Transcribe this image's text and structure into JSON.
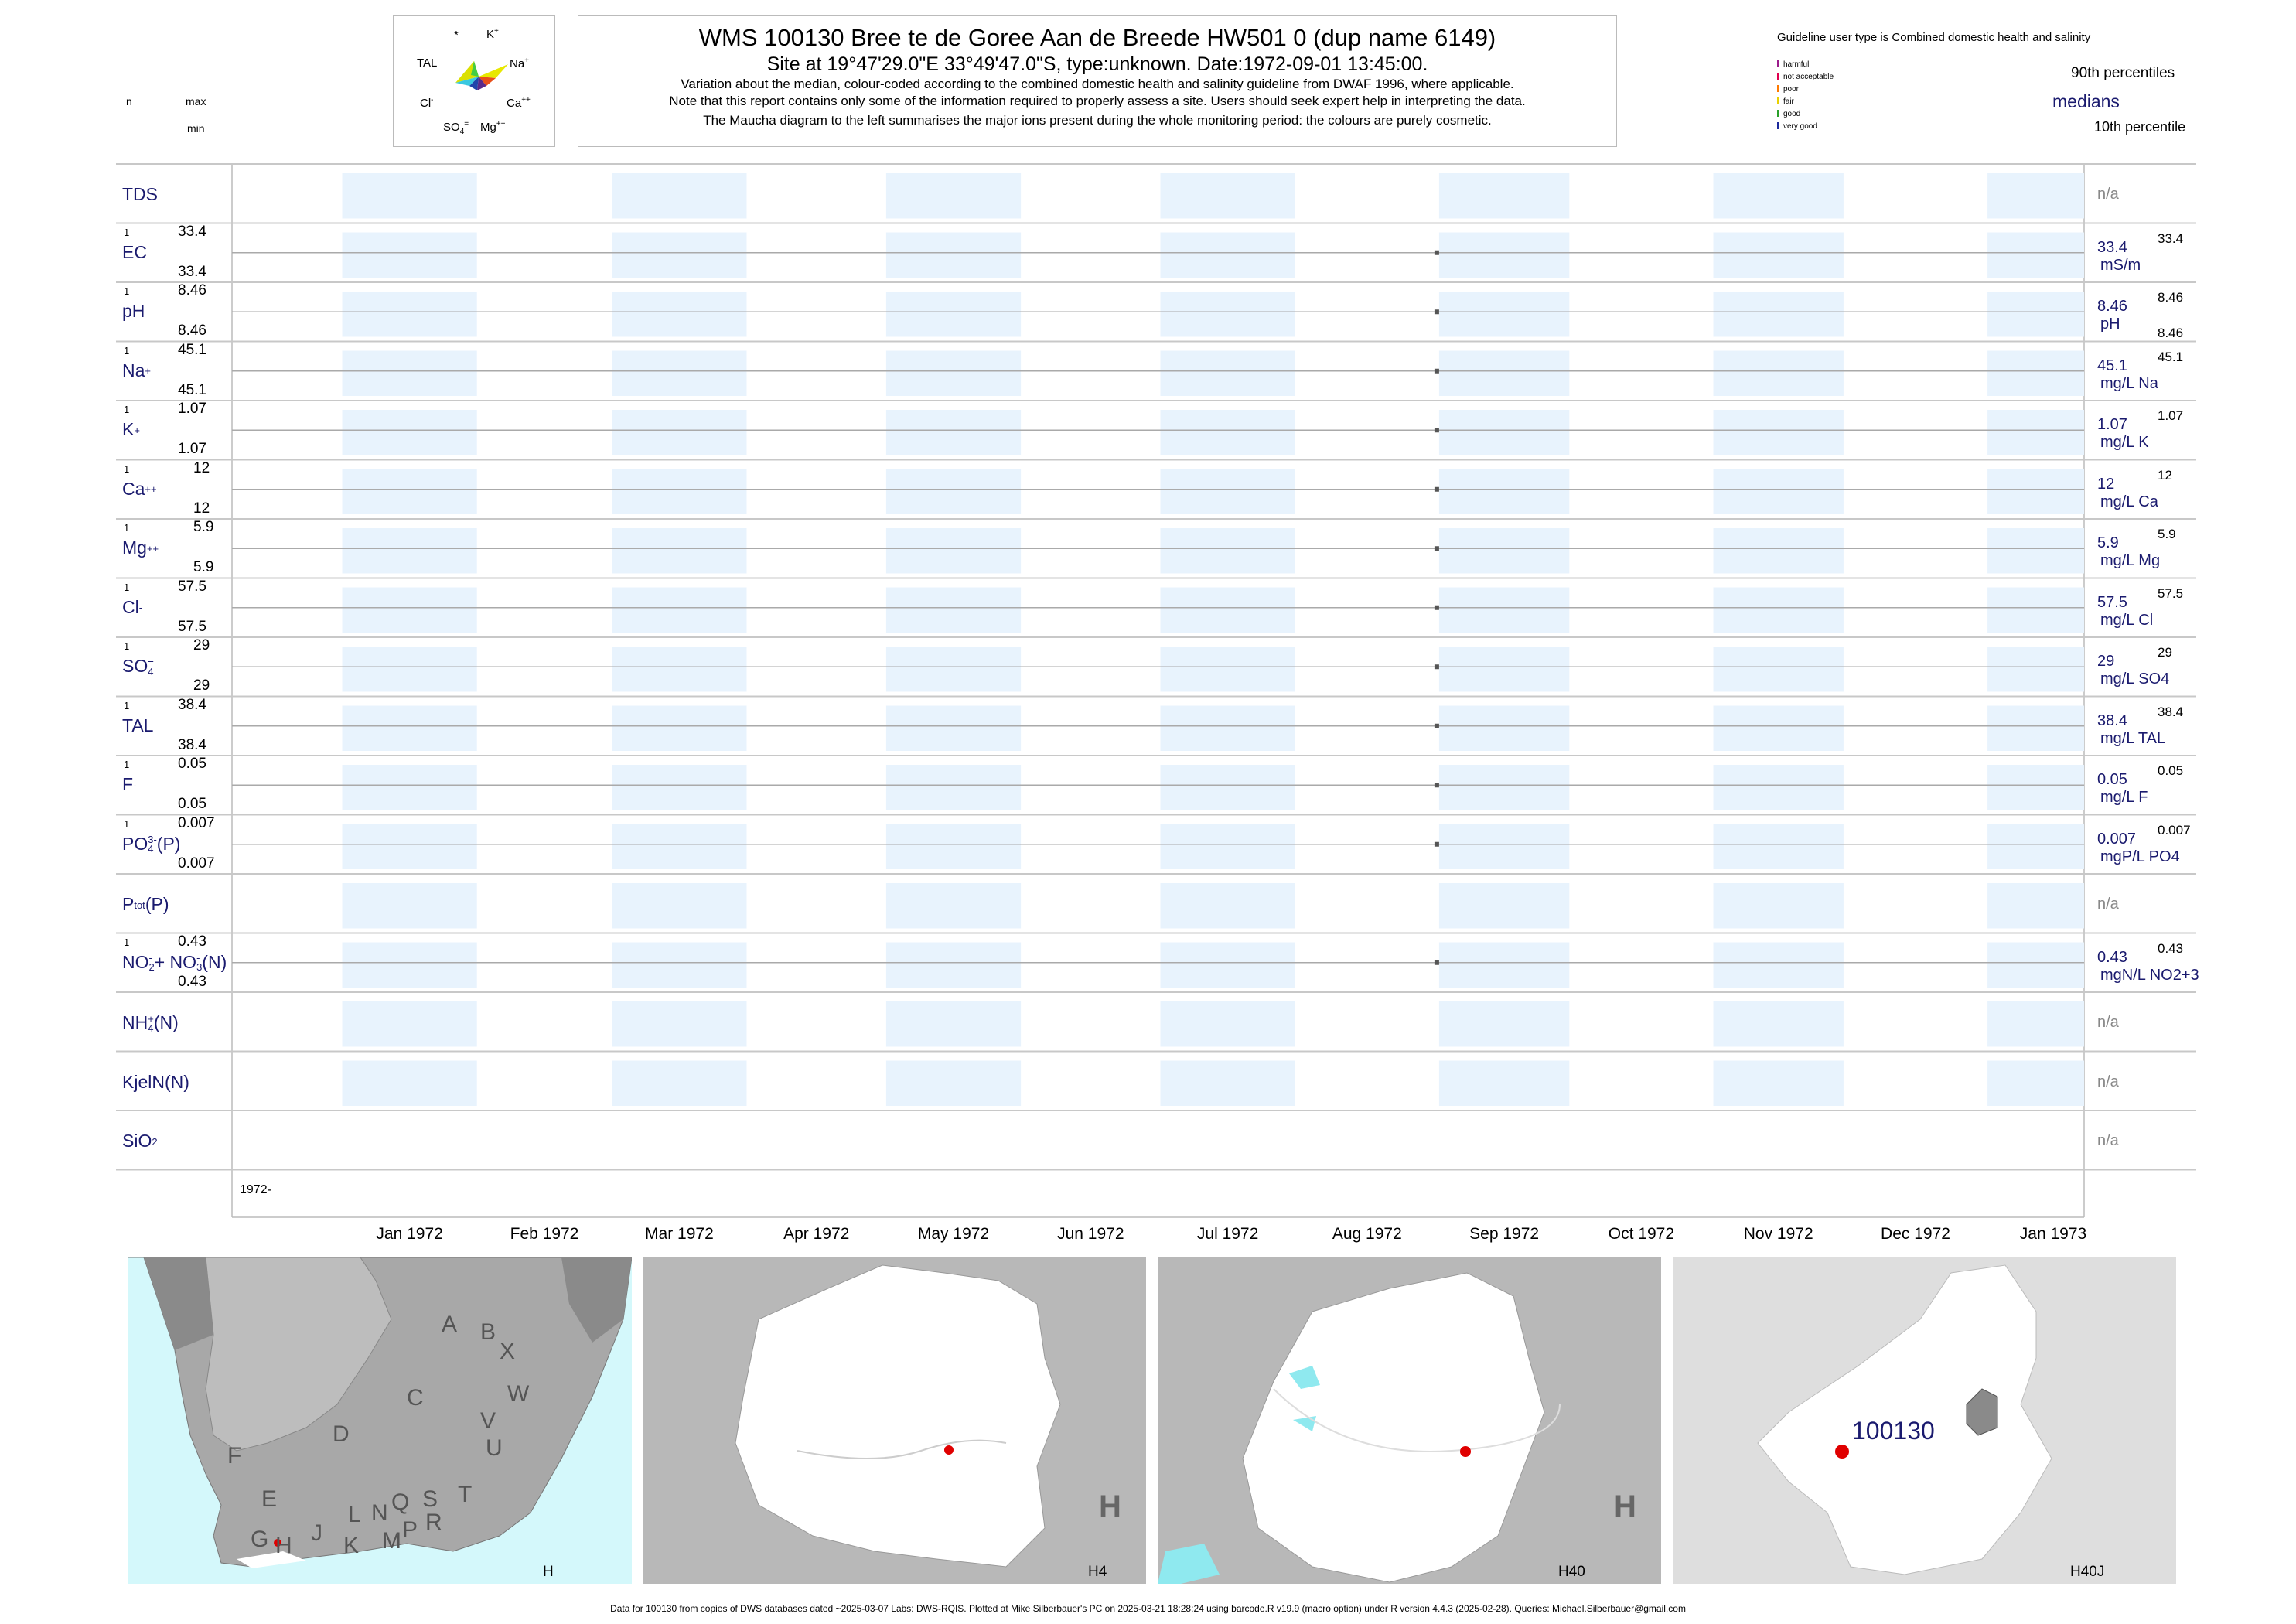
{
  "header": {
    "title": "WMS 100130  Bree te de Goree Aan de Breede HW501 0 (dup name 6149)",
    "subtitle": "Site at 19°47'29.0\"E 33°49'47.0\"S, type:unknown. Date:1972-09-01 13:45:00.",
    "note1": "Variation about the median,  colour-coded according to the combined domestic health and salinity guideline from DWAF 1996, where applicable.",
    "note2": "Note that this report contains only some of the information required to properly assess a site. Users should seek expert help in interpreting the data.",
    "note3": "The Maucha diagram to the left summarises the major ions present during the whole monitoring period: the colours are purely cosmetic."
  },
  "maucha": {
    "k": "K",
    "k_sup": "+",
    "tal": "TAL",
    "na": "Na",
    "na_sup": "+",
    "cl": "Cl",
    "cl_sup": "-",
    "ca": "Ca",
    "ca_sup": "++",
    "so4": "SO",
    "so4_sub": "4",
    "so4_sup": "=",
    "mg": "Mg",
    "mg_sup": "++",
    "star": "*"
  },
  "column_headers": {
    "n": "n",
    "max": "max",
    "min": "min"
  },
  "legend": {
    "guideline_title": "Guideline user type is Combined domestic health and salinity",
    "items": [
      {
        "label": "harmful",
        "color": "#9b1c8c"
      },
      {
        "label": "not acceptable",
        "color": "#e0004f"
      },
      {
        "label": "poor",
        "color": "#ff7a00"
      },
      {
        "label": "fair",
        "color": "#e8d000"
      },
      {
        "label": "good",
        "color": "#2aa02a"
      },
      {
        "label": "very good",
        "color": "#1c2a9c"
      }
    ],
    "p90": "90th percentiles",
    "medians": "medians",
    "p10": "10th percentile"
  },
  "rows": [
    {
      "label": "TDS",
      "na": "n/a"
    },
    {
      "label": "EC",
      "n": "1",
      "max": "33.4",
      "min": "33.4",
      "value": "33.4",
      "unit": "mS/m",
      "rmax": "33.4"
    },
    {
      "label": "pH",
      "n": "1",
      "max": "8.46",
      "min": "8.46",
      "value": "8.46",
      "unit": "pH",
      "rmax": "8.46",
      "rmin": "8.46"
    },
    {
      "label": "Na",
      "sup": "+",
      "n": "1",
      "max": "45.1",
      "min": "45.1",
      "value": "45.1",
      "unit": "mg/L Na",
      "rmax": "45.1"
    },
    {
      "label": "K",
      "sup": "+",
      "n": "1",
      "max": "1.07",
      "min": "1.07",
      "value": "1.07",
      "unit": "mg/L K",
      "rmax": "1.07"
    },
    {
      "label": "Ca",
      "sup": "++",
      "n": "1",
      "max": "12",
      "min": "12",
      "value": "12",
      "unit": "mg/L Ca",
      "rmax": "12"
    },
    {
      "label": "Mg",
      "sup": "++",
      "n": "1",
      "max": "5.9",
      "min": "5.9",
      "value": "5.9",
      "unit": "mg/L Mg",
      "rmax": "5.9"
    },
    {
      "label": "Cl",
      "sup": "-",
      "n": "1",
      "max": "57.5",
      "min": "57.5",
      "value": "57.5",
      "unit": "mg/L Cl",
      "rmax": "57.5"
    },
    {
      "label": "SO",
      "sub": "4",
      "sup": "=",
      "n": "1",
      "max": "29",
      "min": "29",
      "value": "29",
      "unit": "mg/L SO4",
      "rmax": "29"
    },
    {
      "label": "TAL",
      "n": "1",
      "max": "38.4",
      "min": "38.4",
      "value": "38.4",
      "unit": "mg/L TAL",
      "rmax": "38.4"
    },
    {
      "label": "F",
      "sup": "-",
      "n": "1",
      "max": "0.05",
      "min": "0.05",
      "value": "0.05",
      "unit": "mg/L F",
      "rmax": "0.05"
    },
    {
      "label": "PO",
      "sub": "4",
      "sup": "3-",
      "suffix": "(P)",
      "n": "1",
      "max": "0.007",
      "min": "0.007",
      "value": "0.007",
      "unit": "mgP/L PO4",
      "rmax": "0.007"
    },
    {
      "label": "P",
      "sub": "tot",
      "suffix": "(P)",
      "na": "n/a"
    },
    {
      "label": "NO",
      "sub": "2",
      "sup": "-",
      "mid": "+ NO",
      "sub2": "3",
      "sup2": "-",
      "suffix": "(N)",
      "n": "1",
      "max": "0.43",
      "min": "0.43",
      "value": "0.43",
      "unit": "mgN/L NO2+3",
      "rmax": "0.43"
    },
    {
      "label": "NH",
      "sub": "4",
      "sup": "+",
      "suffix": "(N)",
      "na": "n/a"
    },
    {
      "label": "KjelN(N)",
      "na": "n/a"
    },
    {
      "label": "SiO",
      "sub": "2",
      "na": "n/a"
    }
  ],
  "chart_data": {
    "type": "scatter",
    "title": "WMS 100130  Bree te de Goree Aan de Breede HW501 0 (dup name 6149)",
    "x_axis_labels": [
      "Jan 1972",
      "Feb 1972",
      "Mar 1972",
      "Apr 1972",
      "May 1972",
      "Jun 1972",
      "Jul 1972",
      "Aug 1972",
      "Sep 1972",
      "Oct 1972",
      "Nov 1972",
      "Dec 1972",
      "Jan 1973"
    ],
    "year_label": "1972-",
    "sample_date": "1972-09-01",
    "xlim": [
      "1971-12-08",
      "1973-01-23"
    ],
    "series": [
      {
        "name": "EC",
        "x": [
          "1972-09-01"
        ],
        "y": [
          33.4
        ]
      },
      {
        "name": "pH",
        "x": [
          "1972-09-01"
        ],
        "y": [
          8.46
        ]
      },
      {
        "name": "Na",
        "x": [
          "1972-09-01"
        ],
        "y": [
          45.1
        ]
      },
      {
        "name": "K",
        "x": [
          "1972-09-01"
        ],
        "y": [
          1.07
        ]
      },
      {
        "name": "Ca",
        "x": [
          "1972-09-01"
        ],
        "y": [
          12
        ]
      },
      {
        "name": "Mg",
        "x": [
          "1972-09-01"
        ],
        "y": [
          5.9
        ]
      },
      {
        "name": "Cl",
        "x": [
          "1972-09-01"
        ],
        "y": [
          57.5
        ]
      },
      {
        "name": "SO4",
        "x": [
          "1972-09-01"
        ],
        "y": [
          29
        ]
      },
      {
        "name": "TAL",
        "x": [
          "1972-09-01"
        ],
        "y": [
          38.4
        ]
      },
      {
        "name": "F",
        "x": [
          "1972-09-01"
        ],
        "y": [
          0.05
        ]
      },
      {
        "name": "PO4(P)",
        "x": [
          "1972-09-01"
        ],
        "y": [
          0.007
        ]
      },
      {
        "name": "NO2+NO3(N)",
        "x": [
          "1972-09-01"
        ],
        "y": [
          0.43
        ]
      }
    ],
    "colors": {
      "band": "#e8f3fd",
      "point": "#555555",
      "text": "#1a1a6e"
    }
  },
  "maps": [
    {
      "code": "H",
      "regions": [
        "A",
        "B",
        "X",
        "C",
        "W",
        "V",
        "U",
        "D",
        "T",
        "F",
        "E",
        "L",
        "N",
        "Q",
        "S",
        "R",
        "G",
        "H",
        "J",
        "K",
        "M",
        "P"
      ]
    },
    {
      "code": "H4",
      "region_letter": "H"
    },
    {
      "code": "H40",
      "region_letter": "H"
    },
    {
      "code": "H40J",
      "site_label": "100130"
    }
  ],
  "footer": "Data for 100130 from copies of DWS databases dated ~2025-03-07 Labs: DWS-RQIS. Plotted at Mike Silberbauer's PC on 2025-03-21 18:28:24 using barcode.R v19.9 (macro option) under R version 4.4.3 (2025-02-28). Queries: Michael.Silberbauer@gmail.com"
}
